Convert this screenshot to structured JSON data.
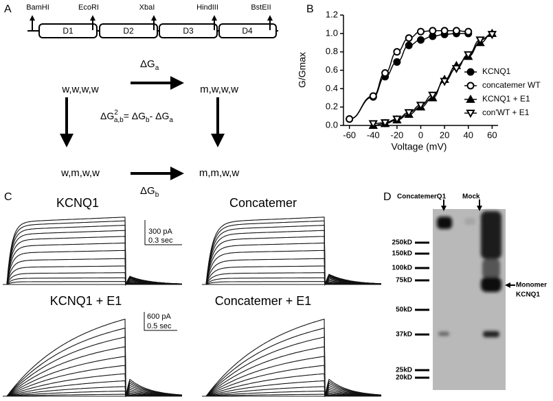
{
  "panel_labels": [
    "A",
    "B",
    "C",
    "D"
  ],
  "construct": {
    "sites": [
      "BamHI",
      "EcoRI",
      "XbaI",
      "HindIII",
      "BstEII"
    ],
    "domains": [
      "D1",
      "D2",
      "D3",
      "D4"
    ]
  },
  "scheme": {
    "states": [
      "w,w,w,w",
      "m,w,w,w",
      "w,m,w,w",
      "m,m,w,w"
    ],
    "dGa": [
      "ΔG",
      "a"
    ],
    "dGb": [
      "ΔG",
      "b"
    ],
    "equation": [
      "ΔG",
      "2",
      "a,b",
      "= ΔG",
      "b",
      "- ΔG",
      "a"
    ]
  },
  "traces": {
    "titles": [
      "KCNQ1",
      "Concatemer",
      "KCNQ1 + E1",
      "Concatemer + E1"
    ],
    "scale_top": [
      "300 pA",
      "0.3 sec"
    ],
    "scale_bottom": [
      "600 pA",
      "0.5 sec"
    ]
  },
  "blot": {
    "lanes": [
      "ConcatemerQ1",
      "Mock"
    ],
    "markers": [
      "250kD",
      "150kD",
      "100kD",
      "75kD",
      "50kD",
      "37kD",
      "25kD",
      "20kD"
    ],
    "annotation": [
      "Monomer",
      "KCNQ1"
    ]
  },
  "chart_data": {
    "type": "line",
    "xlabel": "Voltage (mV)",
    "ylabel": "G/Gmax",
    "xlim": [
      -65,
      65
    ],
    "ylim": [
      0,
      1.2
    ],
    "xticks": [
      -60,
      -40,
      -20,
      0,
      20,
      40,
      60
    ],
    "yticks": [
      {
        "value": 0,
        "label": "0.0"
      },
      0.2,
      0.4,
      0.6,
      0.8,
      {
        "value": 1,
        "label": "1.0"
      },
      1.2
    ],
    "series": [
      {
        "name": "KCNQ1",
        "color": "#000000",
        "marker": "circle-filled",
        "x": [
          -60,
          -40,
          -30,
          -20,
          -10,
          0,
          10,
          20,
          30,
          40
        ],
        "values": [
          0.07,
          0.31,
          0.53,
          0.69,
          0.87,
          0.93,
          0.97,
          0.99,
          1.0,
          1.0
        ]
      },
      {
        "name": "concatemer WT",
        "color": "#000000",
        "marker": "circle-open",
        "x": [
          -60,
          -40,
          -30,
          -20,
          -10,
          0,
          10,
          20,
          30,
          40
        ],
        "values": [
          0.07,
          0.32,
          0.57,
          0.8,
          0.95,
          1.02,
          1.03,
          1.03,
          1.03,
          1.02
        ]
      },
      {
        "name": "KCNQ1 + E1",
        "color": "#000000",
        "marker": "triangle-filled",
        "x": [
          -40,
          -30,
          -20,
          -10,
          0,
          10,
          20,
          30,
          40,
          50,
          60
        ],
        "values": [
          0.0,
          0.02,
          0.06,
          0.12,
          0.2,
          0.3,
          0.5,
          0.65,
          0.75,
          0.9,
          1.0
        ]
      },
      {
        "name": "con'WT + E1",
        "color": "#000000",
        "marker": "triangle-open",
        "x": [
          -40,
          -30,
          -20,
          -10,
          0,
          10,
          20,
          30,
          40,
          50,
          60
        ],
        "values": [
          0.02,
          0.03,
          0.07,
          0.14,
          0.22,
          0.33,
          0.48,
          0.62,
          0.77,
          0.93,
          0.99
        ]
      }
    ]
  }
}
